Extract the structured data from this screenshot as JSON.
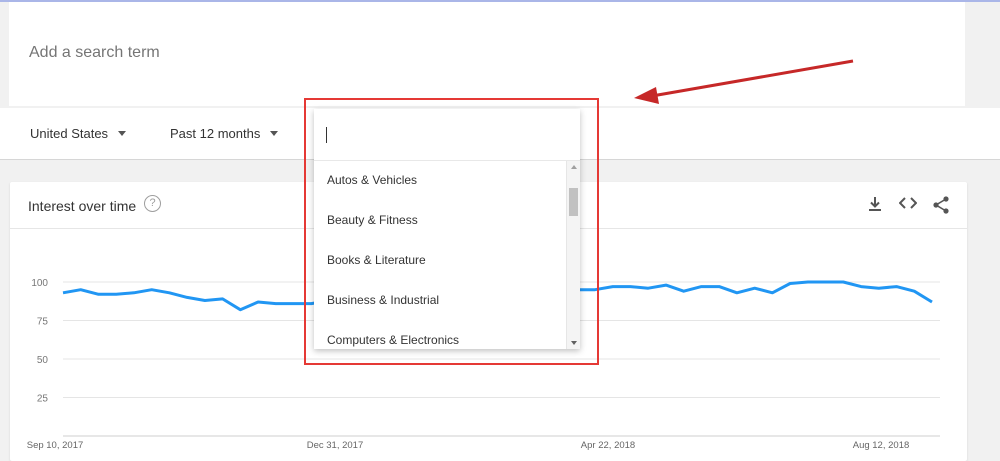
{
  "search": {
    "placeholder": "Add a search term"
  },
  "filters": {
    "region": "United States",
    "period": "Past 12 months"
  },
  "card": {
    "title": "Interest over time",
    "help_icon": "question-circle-icon",
    "actions": [
      "download-icon",
      "embed-code-icon",
      "share-icon"
    ]
  },
  "category_dropdown": {
    "search_value": "",
    "items": [
      "Autos & Vehicles",
      "Beauty & Fitness",
      "Books & Literature",
      "Business & Industrial",
      "Computers & Electronics"
    ]
  },
  "annotation": {
    "color": "#e53935",
    "arrow_color": "#c62828"
  },
  "chart_data": {
    "type": "line",
    "y_ticks": [
      "100",
      "75",
      "50",
      "25"
    ],
    "ylim": [
      0,
      100
    ],
    "x_tick_labels": [
      "Sep 10, 2017",
      "Dec 31, 2017",
      "Apr 22, 2018",
      "Aug 12, 2018"
    ],
    "series": [
      {
        "color": "#2196f3",
        "values": [
          93,
          95,
          92,
          92,
          93,
          95,
          93,
          90,
          88,
          89,
          82,
          87,
          86,
          86,
          86,
          88,
          90,
          92,
          93,
          93,
          94,
          95,
          94,
          93,
          94,
          96,
          95,
          94,
          94,
          95,
          95,
          97,
          97,
          96,
          98,
          94,
          97,
          97,
          93,
          96,
          93,
          99,
          100,
          100,
          100,
          97,
          96,
          97,
          94,
          87
        ]
      }
    ]
  }
}
